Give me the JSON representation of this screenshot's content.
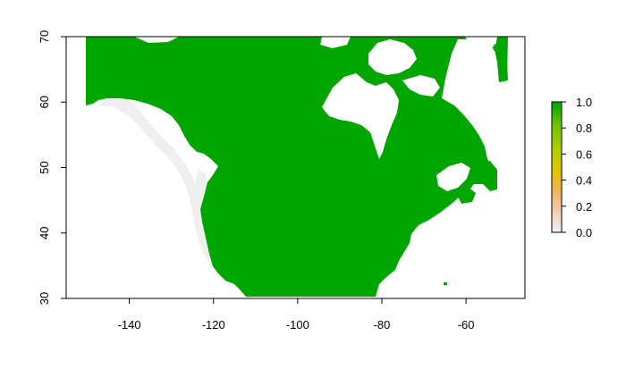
{
  "chart_data": {
    "type": "heatmap",
    "title": "",
    "xlabel": "",
    "ylabel": "",
    "xlim": [
      -155,
      -46
    ],
    "ylim": [
      30,
      70
    ],
    "x_ticks": [
      -140,
      -120,
      -100,
      -80,
      -60
    ],
    "y_ticks": [
      30,
      40,
      50,
      60,
      70
    ],
    "x_tick_labels": [
      "-140",
      "-120",
      "-100",
      "-80",
      "-60"
    ],
    "y_tick_labels": [
      "30",
      "40",
      "50",
      "60",
      "70"
    ],
    "grid": false,
    "legend": {
      "placement": "right",
      "range": [
        0.0,
        1.0
      ],
      "ticks": [
        0.0,
        0.2,
        0.4,
        0.6,
        0.8,
        1.0
      ],
      "tick_labels": [
        "0.0",
        "0.2",
        "0.4",
        "0.6",
        "0.8",
        "1.0"
      ]
    },
    "color_scale": [
      "#f2f2f2",
      "#f2c9a8",
      "#eeb45a",
      "#e6c200",
      "#b5d000",
      "#6fc400",
      "#00a600"
    ],
    "land_value": 1.0,
    "land_color": "#00a600",
    "fringe_color": "#efefef"
  }
}
